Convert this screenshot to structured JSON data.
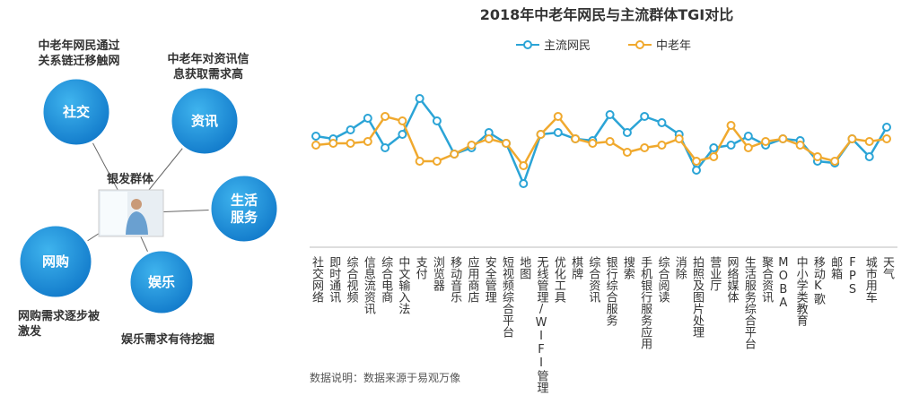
{
  "diagram": {
    "center_label": "银发群体",
    "nodes": [
      {
        "label": [
          "社交"
        ],
        "caption": [
          "中老年网民通过",
          "关系链迁移触网"
        ]
      },
      {
        "label": [
          "资讯"
        ],
        "caption": [
          "中老年对资讯信",
          "息获取需求高"
        ]
      },
      {
        "label": [
          "生活",
          "服务"
        ],
        "caption": []
      },
      {
        "label": [
          "网购"
        ],
        "caption": [
          "网购需求逐步被",
          "激发"
        ]
      },
      {
        "label": [
          "娱乐"
        ],
        "caption": [
          "娱乐需求有待挖掘"
        ]
      }
    ]
  },
  "chart_data": {
    "type": "line",
    "title": "2018年中老年网民与主流群体TGI对比",
    "categories": [
      "社交网络",
      "即时通讯",
      "综合视频",
      "信息流资讯",
      "综合电商",
      "中文输入法",
      "支付",
      "浏览器",
      "移动音乐",
      "应用商店",
      "安全管理",
      "短视频综合平台",
      "地图",
      "无线管理/WIFI管理",
      "优化工具",
      "棋牌",
      "综合资讯",
      "银行综合服务",
      "搜索",
      "手机银行服务应用",
      "综合阅读",
      "消除",
      "拍照及图片处理",
      "营业厅",
      "网络媒体",
      "生活服务综合平台",
      "聚合资讯",
      "MOBA",
      "中小学类教育",
      "移动K歌",
      "邮箱",
      "FPS",
      "城市用车",
      "天气"
    ],
    "series": [
      {
        "name": "主流网民",
        "color": "#2ba4d6",
        "values": [
          68,
          65,
          75,
          88,
          55,
          70,
          110,
          85,
          48,
          55,
          72,
          60,
          15,
          70,
          72,
          65,
          63,
          92,
          72,
          90,
          83,
          70,
          30,
          55,
          58,
          68,
          58,
          65,
          63,
          40,
          38,
          65,
          45,
          78
        ]
      },
      {
        "name": "中老年",
        "color": "#f0a92e",
        "values": [
          58,
          60,
          60,
          62,
          90,
          85,
          40,
          40,
          48,
          58,
          65,
          60,
          35,
          70,
          90,
          65,
          60,
          62,
          50,
          55,
          58,
          65,
          40,
          45,
          80,
          55,
          62,
          65,
          58,
          45,
          40,
          65,
          62,
          65
        ]
      }
    ],
    "ylim": [
      0,
      120
    ],
    "legend": "top"
  },
  "source": "数据说明：数据来源于易观万像"
}
